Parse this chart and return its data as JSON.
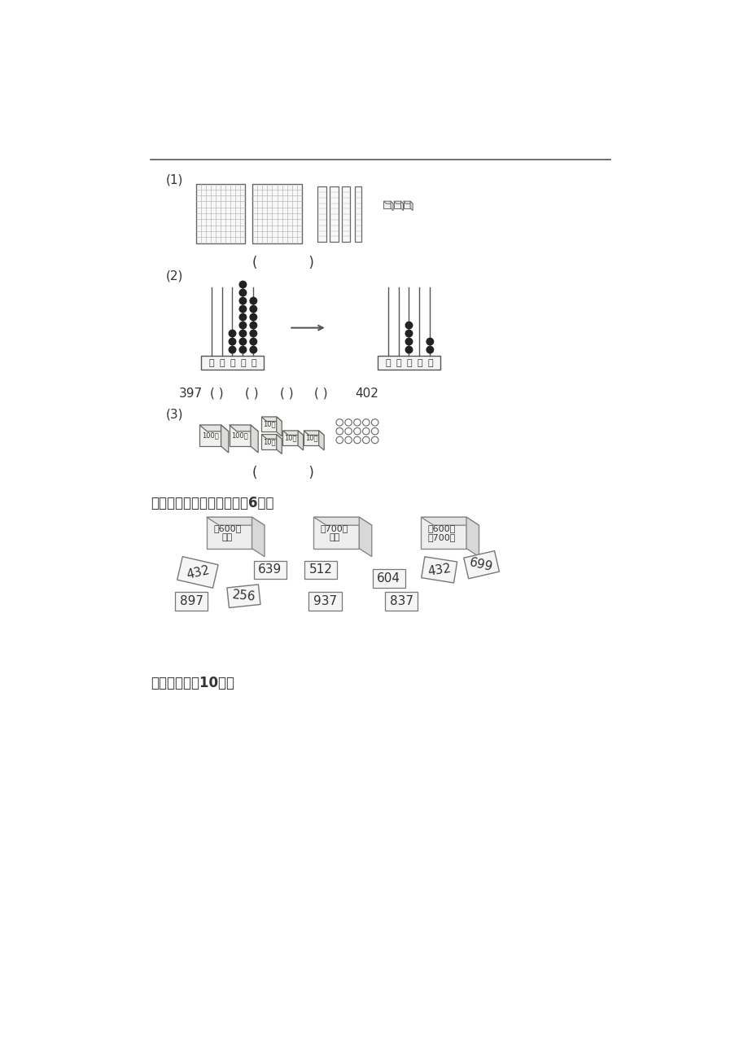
{
  "page_color": "#ffffff",
  "text_color": "#333333",
  "section1_label": "(1)",
  "section2_label": "(2)",
  "section3_label": "(3)",
  "section9_title": "九、按要求连线装盒子。（6分）",
  "section10_title": "十、选择。（10分）",
  "abacus_label": "万千百十个",
  "seq_line_pre": "397",
  "seq_line_post": "402",
  "box1_line1": "毖600小",
  "box1_line2": "的数",
  "box2_line1": "毖700大",
  "box2_line2": "的数",
  "box3_line1": "毖600大",
  "box3_line2": "毖700小",
  "grid_color": "#aaaaaa",
  "dark_color": "#444444"
}
